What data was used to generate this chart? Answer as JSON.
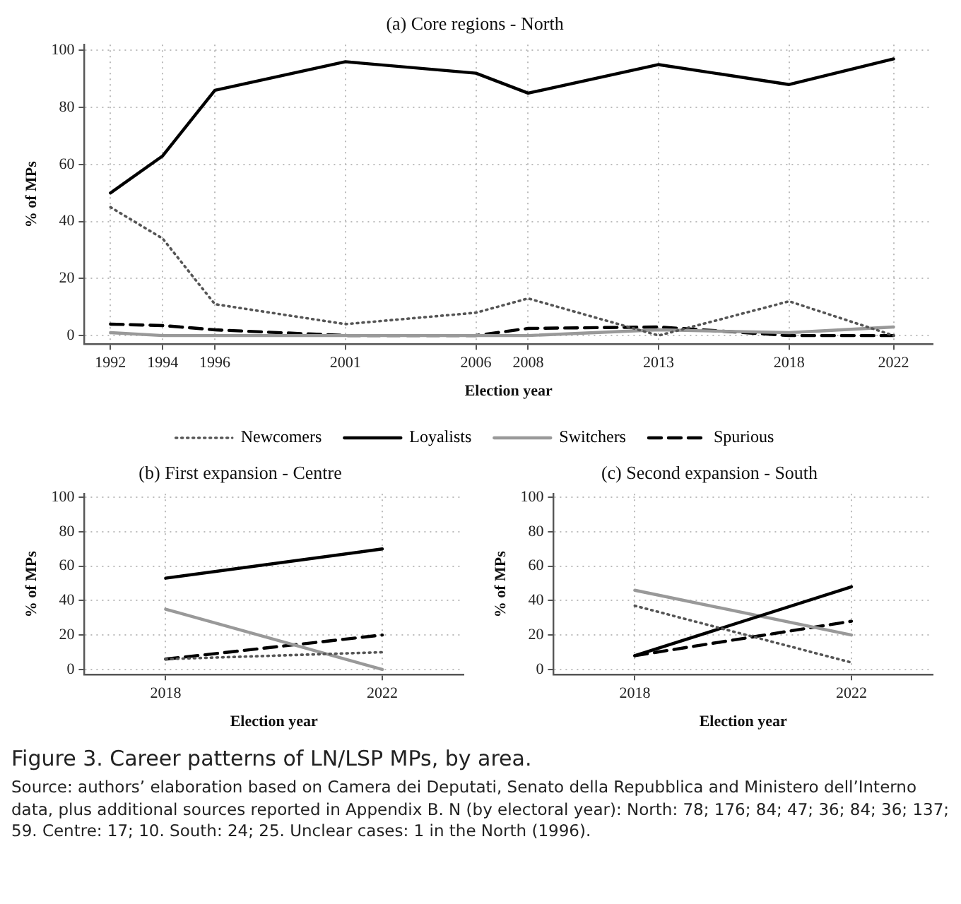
{
  "chart_data": [
    {
      "type": "line",
      "title": "(a) Core regions - North",
      "xlabel": "Election year",
      "ylabel": "% of MPs",
      "x": [
        1992,
        1994,
        1996,
        2001,
        2006,
        2008,
        2013,
        2018,
        2022
      ],
      "xlim": [
        1991,
        2023.5
      ],
      "xticks": [
        1992,
        1994,
        1996,
        2001,
        2006,
        2008,
        2013,
        2018,
        2022
      ],
      "ylim": [
        -3,
        102
      ],
      "yticks": [
        0,
        20,
        40,
        60,
        80,
        100
      ],
      "grid": true,
      "legend": "bottom",
      "marker": "none",
      "series": [
        {
          "name": "Newcomers",
          "color": "#555555",
          "line_style": "dotted",
          "values": [
            45,
            34,
            11,
            4,
            8,
            13,
            0,
            12,
            0
          ]
        },
        {
          "name": "Loyalists",
          "color": "#000000",
          "line_style": "solid",
          "values": [
            50,
            63,
            86,
            96,
            92,
            85,
            95,
            88,
            97
          ]
        },
        {
          "name": "Switchers",
          "color": "#999999",
          "line_style": "solid",
          "values": [
            1,
            0,
            0,
            0,
            0,
            0,
            2,
            1,
            3
          ]
        },
        {
          "name": "Spurious",
          "color": "#000000",
          "line_style": "dashed",
          "values": [
            4,
            3.5,
            2,
            0,
            0,
            2.5,
            3,
            0,
            0
          ]
        }
      ]
    },
    {
      "type": "line",
      "title": "(b) First expansion - Centre",
      "xlabel": "Election year",
      "ylabel": "% of MPs",
      "x": [
        2018,
        2022
      ],
      "xlim": [
        2016.5,
        2023.5
      ],
      "xticks": [
        2018,
        2022
      ],
      "ylim": [
        -3,
        102
      ],
      "yticks": [
        0,
        20,
        40,
        60,
        80,
        100
      ],
      "grid": true,
      "marker": "none",
      "series": [
        {
          "color": "#555555",
          "line_style": "dotted",
          "values": [
            6,
            10
          ]
        },
        {
          "color": "#000000",
          "line_style": "solid",
          "values": [
            53,
            70
          ]
        },
        {
          "color": "#999999",
          "line_style": "solid",
          "values": [
            35,
            0
          ]
        },
        {
          "color": "#000000",
          "line_style": "dashed",
          "values": [
            6,
            20
          ]
        }
      ]
    },
    {
      "type": "line",
      "title": "(c) Second expansion - South",
      "xlabel": "Election year",
      "ylabel": "% of MPs",
      "x": [
        2018,
        2022
      ],
      "xlim": [
        2016.5,
        2023.5
      ],
      "xticks": [
        2018,
        2022
      ],
      "ylim": [
        -3,
        102
      ],
      "yticks": [
        0,
        20,
        40,
        60,
        80,
        100
      ],
      "grid": true,
      "marker": "none",
      "series": [
        {
          "color": "#555555",
          "line_style": "dotted",
          "values": [
            37,
            4
          ]
        },
        {
          "color": "#000000",
          "line_style": "solid",
          "values": [
            8,
            48
          ]
        },
        {
          "color": "#999999",
          "line_style": "solid",
          "values": [
            46,
            20
          ]
        },
        {
          "color": "#000000",
          "line_style": "dashed",
          "values": [
            8,
            28
          ]
        }
      ],
      "annotations": [
        "Figure 3. Career patterns of LN/LSP MPs, by area.",
        "Source: authors’ elaboration based on Camera dei Deputati, Senato della Repubblica and Ministero dell’Interno data, plus additional sources reported in Appendix B. N (by electoral year): North: 78; 176; 84; 47; 36; 84; 36; 137; 59. Centre: 17; 10. South: 24; 25. Unclear cases: 1 in the North (1996)."
      ]
    }
  ]
}
